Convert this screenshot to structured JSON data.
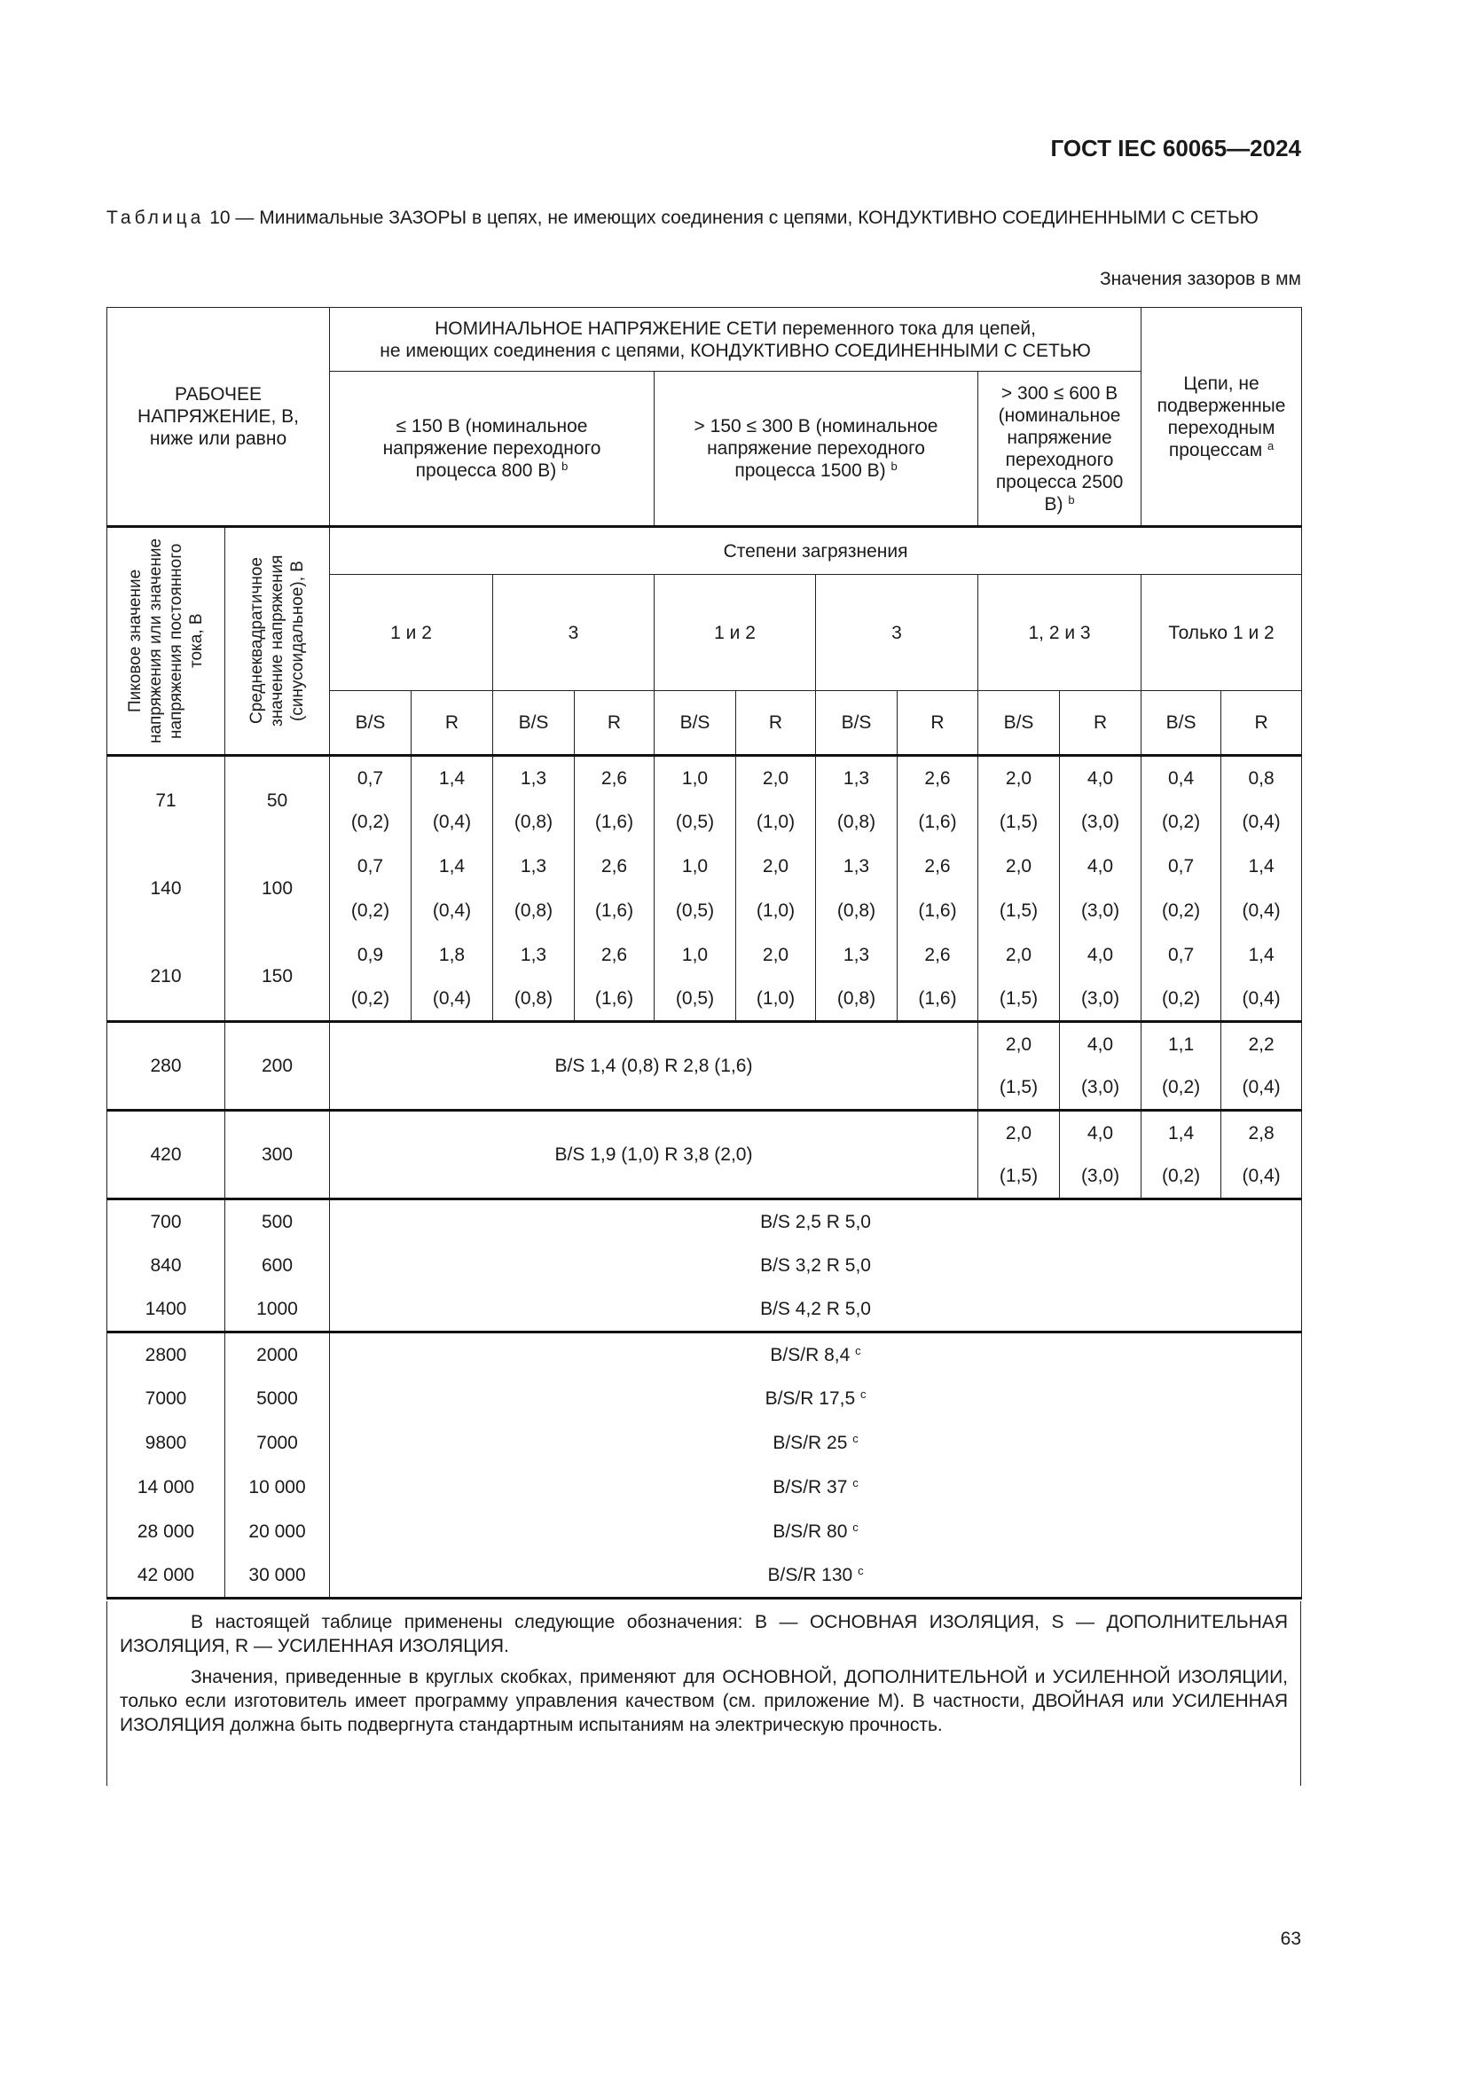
{
  "header": {
    "doc_id": "ГОСТ IEC 60065—2024"
  },
  "caption": {
    "label": "Таблица",
    "text": "10 — Минимальные ЗАЗОРЫ в цепях, не имеющих соединения с цепями, КОНДУКТИВНО СОЕДИНЕННЫМИ С СЕТЬЮ",
    "units": "Значения зазоров в мм"
  },
  "table": {
    "head": {
      "working_voltage": "РАБОЧЕЕ НАПРЯЖЕНИЕ, В, ниже или равно",
      "nominal_line1": "НОМИНАЛЬНОЕ НАПРЯЖЕНИЕ СЕТИ переменного тока для цепей,",
      "nominal_line2": "не имеющих соединения с цепями, КОНДУКТИВНО СОЕДИНЕННЫМИ С СЕТЬЮ",
      "ranges": [
        {
          "text": "≤ 150 В (номинальное напряжение переходного процесса 800 В)",
          "sup": "b"
        },
        {
          "text": "> 150 ≤ 300 В (номинальное напряжение переходного процесса 1500 В)",
          "sup": "b"
        },
        {
          "text": "> 300 ≤ 600 В (номинальное напряжение переходного процесса 2500 В)",
          "sup": "b"
        }
      ],
      "not_subject": {
        "text": "Цепи, не подверженные переходным процессам",
        "sup": "a"
      },
      "peak_label": "Пиковое значение напряжения или значение напряжения постоянного тока, В",
      "rms_label": "Среднеквадратичное значение напряжения (синусоидальное), В",
      "pollution_label": "Степени загрязнения",
      "pollution_degrees": [
        "1 и 2",
        "3",
        "1 и 2",
        "3",
        "1, 2 и 3",
        "Только 1 и 2"
      ],
      "bs": "B/S",
      "r": "R"
    },
    "group1": [
      {
        "peak": "71",
        "rms": "50",
        "values": [
          "0,7",
          "1,4",
          "1,3",
          "2,6",
          "1,0",
          "2,0",
          "1,3",
          "2,6",
          "2,0",
          "4,0",
          "0,4",
          "0,8"
        ],
        "paren": [
          "(0,2)",
          "(0,4)",
          "(0,8)",
          "(1,6)",
          "(0,5)",
          "(1,0)",
          "(0,8)",
          "(1,6)",
          "(1,5)",
          "(3,0)",
          "(0,2)",
          "(0,4)"
        ]
      },
      {
        "peak": "140",
        "rms": "100",
        "values": [
          "0,7",
          "1,4",
          "1,3",
          "2,6",
          "1,0",
          "2,0",
          "1,3",
          "2,6",
          "2,0",
          "4,0",
          "0,7",
          "1,4"
        ],
        "paren": [
          "(0,2)",
          "(0,4)",
          "(0,8)",
          "(1,6)",
          "(0,5)",
          "(1,0)",
          "(0,8)",
          "(1,6)",
          "(1,5)",
          "(3,0)",
          "(0,2)",
          "(0,4)"
        ]
      },
      {
        "peak": "210",
        "rms": "150",
        "values": [
          "0,9",
          "1,8",
          "1,3",
          "2,6",
          "1,0",
          "2,0",
          "1,3",
          "2,6",
          "2,0",
          "4,0",
          "0,7",
          "1,4"
        ],
        "paren": [
          "(0,2)",
          "(0,4)",
          "(0,8)",
          "(1,6)",
          "(0,5)",
          "(1,0)",
          "(0,8)",
          "(1,6)",
          "(1,5)",
          "(3,0)",
          "(0,2)",
          "(0,4)"
        ]
      }
    ],
    "group2": [
      {
        "peak": "280",
        "rms": "200",
        "merged": "B/S 1,4 (0,8) R 2,8 (1,6)",
        "values": [
          "2,0",
          "4,0",
          "1,1",
          "2,2"
        ],
        "paren": [
          "(1,5)",
          "(3,0)",
          "(0,2)",
          "(0,4)"
        ]
      },
      {
        "peak": "420",
        "rms": "300",
        "merged": "B/S 1,9 (1,0) R 3,8 (2,0)",
        "values": [
          "2,0",
          "4,0",
          "1,4",
          "2,8"
        ],
        "paren": [
          "(1,5)",
          "(3,0)",
          "(0,2)",
          "(0,4)"
        ]
      }
    ],
    "group3": [
      {
        "peak": "700",
        "rms": "500",
        "merged": "B/S 2,5 R 5,0"
      },
      {
        "peak": "840",
        "rms": "600",
        "merged": "B/S 3,2 R 5,0"
      },
      {
        "peak": "1400",
        "rms": "1000",
        "merged": "B/S 4,2 R 5,0"
      }
    ],
    "group4": [
      {
        "peak": "2800",
        "rms": "2000",
        "merged": "B/S/R 8,4",
        "sup": "c"
      },
      {
        "peak": "7000",
        "rms": "5000",
        "merged": "B/S/R 17,5",
        "sup": "c"
      },
      {
        "peak": "9800",
        "rms": "7000",
        "merged": "B/S/R 25",
        "sup": "c"
      },
      {
        "peak": "14 000",
        "rms": "10 000",
        "merged": "B/S/R 37",
        "sup": "c"
      },
      {
        "peak": "28 000",
        "rms": "20 000",
        "merged": "B/S/R 80",
        "sup": "c"
      },
      {
        "peak": "42 000",
        "rms": "30 000",
        "merged": "B/S/R 130",
        "sup": "c"
      }
    ]
  },
  "notes": [
    "В настоящей таблице применены следующие обозначения: B — ОСНОВНАЯ ИЗОЛЯЦИЯ, S — ДОПОЛНИТЕЛЬНАЯ ИЗОЛЯЦИЯ, R — УСИЛЕННАЯ ИЗОЛЯЦИЯ.",
    "Значения, приведенные в круглых скобках, применяют для ОСНОВНОЙ, ДОПОЛНИТЕЛЬНОЙ и УСИЛЕННОЙ ИЗОЛЯЦИИ, только если изготовитель имеет программу управления качеством (см. приложение М). В частности, ДВОЙНАЯ или УСИЛЕННАЯ ИЗОЛЯЦИЯ должна быть подвергнута стандартным испытаниям на электрическую прочность."
  ],
  "page_number": "63"
}
